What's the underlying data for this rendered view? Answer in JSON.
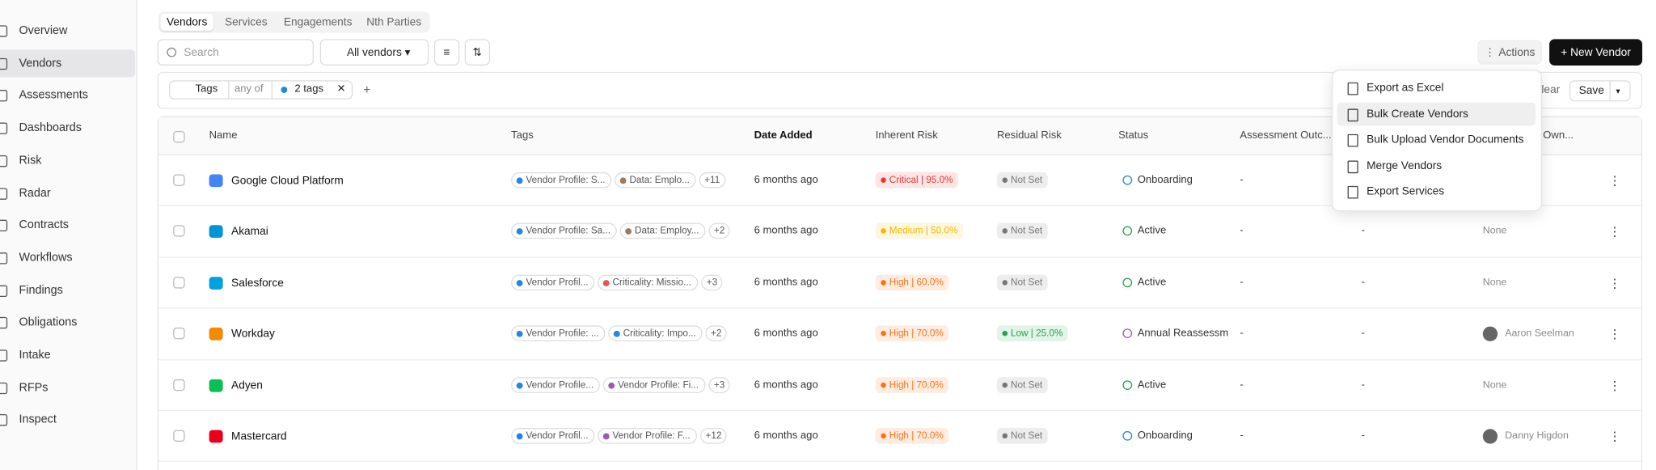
{
  "sidebar": {
    "items": [
      "Overview",
      "Vendors",
      "Assessments",
      "Dashboards",
      "Risk",
      "Radar",
      "Contracts",
      "Workflows",
      "Findings",
      "Obligations",
      "Intake",
      "RFPs",
      "Inspect"
    ],
    "active": 1
  },
  "tabs": {
    "items": [
      "Vendors",
      "Services",
      "Engagements",
      "Nth Parties"
    ],
    "active": 0
  },
  "toolbar": {
    "search_placeholder": "Search",
    "view": "All vendors",
    "actions": "Actions",
    "new_button": "+ New Vendor"
  },
  "filter": {
    "field": "Tags",
    "operator": "any of",
    "value": "2 tags",
    "add": "+",
    "clear": "Clear",
    "save": "Save"
  },
  "table": {
    "headers": [
      "Name",
      "Tags",
      "Date Added",
      "Inherent Risk",
      "Residual Risk",
      "Status",
      "Assessment Outc...",
      null,
      "Own..."
    ],
    "rows": [
      {
        "name": "Google Cloud Platform",
        "logo_color": "#4285f4",
        "tags": [
          {
            "label": "Vendor Profile: S...",
            "color": "#1e88e5"
          },
          {
            "label": "Data: Emplo...",
            "color": "#a0785a"
          }
        ],
        "more": "+11",
        "date": "6 months ago",
        "inherent": {
          "label": "Critical | 95.0%",
          "color": "#e53935"
        },
        "residual": {
          "label": "Not Set",
          "color": "#777777"
        },
        "status": {
          "label": "Onboarding",
          "color": "#1e88e5"
        },
        "outcome": "-",
        "col8": null,
        "owner": null
      },
      {
        "name": "Akamai",
        "logo_color": "#0096d6",
        "tags": [
          {
            "label": "Vendor Profile: Sa...",
            "color": "#1e88e5"
          },
          {
            "label": "Data: Employ...",
            "color": "#a0785a"
          }
        ],
        "more": "+2",
        "date": "6 months ago",
        "inherent": {
          "label": "Medium | 50.0%",
          "color": "#f5b800"
        },
        "residual": {
          "label": "Not Set",
          "color": "#777777"
        },
        "status": {
          "label": "Active",
          "color": "#22a355"
        },
        "outcome": "-",
        "col8": "-",
        "owner": "None"
      },
      {
        "name": "Salesforce",
        "logo_color": "#00a1e0",
        "tags": [
          {
            "label": "Vendor Profil...",
            "color": "#1e88e5"
          },
          {
            "label": "Criticality: Missio...",
            "color": "#e05555"
          }
        ],
        "more": "+3",
        "date": "6 months ago",
        "inherent": {
          "label": "High | 60.0%",
          "color": "#f97316"
        },
        "residual": {
          "label": "Not Set",
          "color": "#777777"
        },
        "status": {
          "label": "Active",
          "color": "#22a355"
        },
        "outcome": "-",
        "col8": "-",
        "owner": "None"
      },
      {
        "name": "Workday",
        "logo_color": "#f38b00",
        "tags": [
          {
            "label": "Vendor Profile: ...",
            "color": "#1e88e5"
          },
          {
            "label": "Criticality: Impo...",
            "color": "#1e88e5"
          }
        ],
        "more": "+2",
        "date": "6 months ago",
        "inherent": {
          "label": "High | 70.0%",
          "color": "#f97316"
        },
        "residual": {
          "label": "Low | 25.0%",
          "color": "#22a355"
        },
        "status": {
          "label": "Annual Reassessm",
          "color": "#9b59b6"
        },
        "outcome": "-",
        "col8": "-",
        "owner": "Aaron Seelman"
      },
      {
        "name": "Adyen",
        "logo_color": "#0abf53",
        "tags": [
          {
            "label": "Vendor Profile...",
            "color": "#1e88e5"
          },
          {
            "label": "Vendor Profile: Fi...",
            "color": "#9b59b6"
          }
        ],
        "more": "+3",
        "date": "6 months ago",
        "inherent": {
          "label": "High | 70.0%",
          "color": "#f97316"
        },
        "residual": {
          "label": "Not Set",
          "color": "#777777"
        },
        "status": {
          "label": "Active",
          "color": "#22a355"
        },
        "outcome": "-",
        "col8": "-",
        "owner": "None"
      },
      {
        "name": "Mastercard",
        "logo_color": "#eb001b",
        "tags": [
          {
            "label": "Vendor Profil...",
            "color": "#1e88e5"
          },
          {
            "label": "Vendor Profile: F...",
            "color": "#9b59b6"
          }
        ],
        "more": "+12",
        "date": "6 months ago",
        "inherent": {
          "label": "High | 70.0%",
          "color": "#f97316"
        },
        "residual": {
          "label": "Not Set",
          "color": "#777777"
        },
        "status": {
          "label": "Onboarding",
          "color": "#1e88e5"
        },
        "outcome": "-",
        "col8": "-",
        "owner": "Danny Higdon"
      }
    ]
  },
  "menu": {
    "items": [
      "Export as Excel",
      "Bulk Create Vendors",
      "Bulk Upload Vendor Documents",
      "Merge Vendors",
      "Export Services"
    ],
    "highlighted": 1
  }
}
